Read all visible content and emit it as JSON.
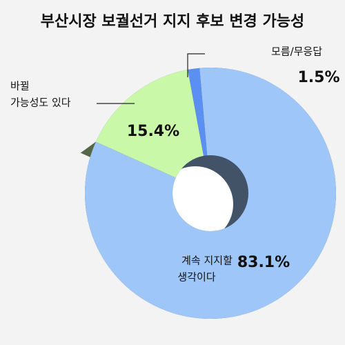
{
  "chart_data": {
    "type": "pie",
    "title": "부산시장 보궐선거 지지 후보 변경 가능성",
    "categories": [
      [
        "계속 지지할",
        "생각이다"
      ],
      [
        "바뀔",
        "가능성도 있다"
      ],
      [
        "모름/무응답"
      ]
    ],
    "values": [
      83.1,
      15.4,
      1.5
    ],
    "value_labels": [
      "83.1%",
      "15.4%",
      "1.5%"
    ],
    "colors": [
      "#9ec6f8",
      "#c9f8a8",
      "#5c8ff2"
    ]
  }
}
